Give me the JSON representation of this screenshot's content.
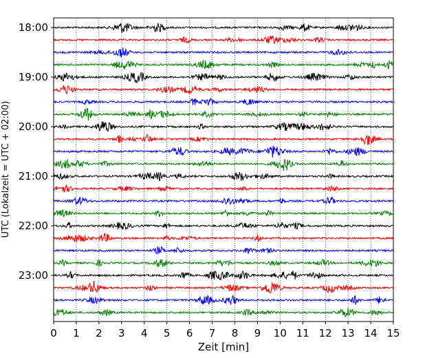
{
  "chart_data": {
    "type": "line",
    "title": "",
    "xlabel": "Zeit  [min]",
    "ylabel": "UTC (Lokalzeit = UTC + 02:00)",
    "xlim": [
      0,
      15
    ],
    "x_ticks": [
      "0",
      "1",
      "2",
      "3",
      "4",
      "5",
      "6",
      "7",
      "8",
      "9",
      "10",
      "11",
      "12",
      "13",
      "14",
      "15"
    ],
    "y_tick_labels": [
      "18:00",
      "19:00",
      "20:00",
      "21:00",
      "22:00",
      "23:00"
    ],
    "y_tick_rows": [
      0,
      4,
      8,
      12,
      16,
      20
    ],
    "grid": "vertical dotted",
    "row_interval_minutes": 15,
    "row_colors": [
      "#000000",
      "#ff0000",
      "#0000ff",
      "#008000"
    ],
    "rows": [
      {
        "start": "18:00",
        "color": "#000000"
      },
      {
        "start": "18:15",
        "color": "#ff0000"
      },
      {
        "start": "18:30",
        "color": "#0000ff"
      },
      {
        "start": "18:45",
        "color": "#008000"
      },
      {
        "start": "19:00",
        "color": "#000000"
      },
      {
        "start": "19:15",
        "color": "#ff0000"
      },
      {
        "start": "19:30",
        "color": "#0000ff"
      },
      {
        "start": "19:45",
        "color": "#008000"
      },
      {
        "start": "20:00",
        "color": "#000000"
      },
      {
        "start": "20:15",
        "color": "#ff0000"
      },
      {
        "start": "20:30",
        "color": "#0000ff"
      },
      {
        "start": "20:45",
        "color": "#008000"
      },
      {
        "start": "21:00",
        "color": "#000000"
      },
      {
        "start": "21:15",
        "color": "#ff0000"
      },
      {
        "start": "21:30",
        "color": "#0000ff"
      },
      {
        "start": "21:45",
        "color": "#008000"
      },
      {
        "start": "22:00",
        "color": "#000000"
      },
      {
        "start": "22:15",
        "color": "#ff0000"
      },
      {
        "start": "22:30",
        "color": "#0000ff"
      },
      {
        "start": "22:45",
        "color": "#008000"
      },
      {
        "start": "23:00",
        "color": "#000000"
      },
      {
        "start": "23:15",
        "color": "#ff0000"
      },
      {
        "start": "23:30",
        "color": "#0000ff"
      },
      {
        "start": "23:45",
        "color": "#008000"
      }
    ]
  }
}
